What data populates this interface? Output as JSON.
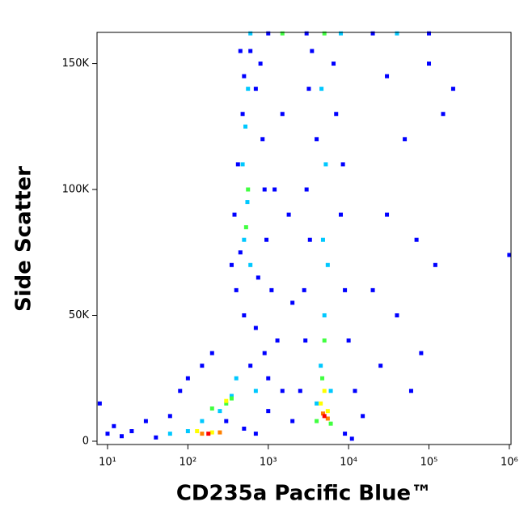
{
  "chart_data": {
    "type": "scatter",
    "x_label": "CD235a Pacific Blue™",
    "y_label": "Side Scatter",
    "xscale": "log",
    "xlim": [
      7.4,
      1050000
    ],
    "xticks": [
      {
        "value": 10,
        "label": "10¹"
      },
      {
        "value": 100,
        "label": "10²"
      },
      {
        "value": 1000,
        "label": "10³"
      },
      {
        "value": 10000,
        "label": "10⁴"
      },
      {
        "value": 100000,
        "label": "10⁵"
      },
      {
        "value": 1000000,
        "label": "10⁶"
      }
    ],
    "ylim": [
      -1300,
      162400
    ],
    "yticks": [
      {
        "value": 0,
        "label": "0"
      },
      {
        "value": 50000,
        "label": "50K"
      },
      {
        "value": 100000,
        "label": "100K"
      },
      {
        "value": 150000,
        "label": "150K"
      }
    ],
    "grid": false,
    "series": [
      {
        "color": "#0000ff",
        "x": [
          400,
          450,
          380,
          420,
          480,
          500,
          450,
          800,
          850,
          900,
          750,
          600,
          700,
          350,
          950,
          1100,
          1200,
          1500,
          1800,
          2000,
          1300,
          900,
          700,
          500,
          1000,
          600,
          2500,
          2800,
          3000,
          3200,
          3500,
          4000,
          7000,
          8000,
          9000,
          10000,
          12000,
          15000,
          6500,
          8500,
          3300,
          2900,
          20000,
          30000,
          50000,
          25000,
          40000,
          70000,
          100000,
          150000,
          200000,
          60000,
          80000,
          120000,
          30000,
          1000000,
          8,
          10,
          12,
          15,
          20,
          30,
          40,
          60,
          80,
          100,
          150,
          200,
          300,
          500,
          700,
          1000,
          1500,
          2000,
          9000,
          11000,
          1000,
          3000,
          20000,
          100000
        ],
        "y": [
          60000,
          75000,
          90000,
          110000,
          130000,
          145000,
          155000,
          150000,
          120000,
          100000,
          65000,
          155000,
          140000,
          70000,
          80000,
          60000,
          100000,
          130000,
          90000,
          55000,
          40000,
          35000,
          45000,
          50000,
          25000,
          30000,
          20000,
          60000,
          100000,
          140000,
          155000,
          120000,
          130000,
          90000,
          60000,
          40000,
          20000,
          10000,
          150000,
          110000,
          80000,
          40000,
          60000,
          90000,
          120000,
          30000,
          50000,
          80000,
          150000,
          130000,
          140000,
          20000,
          35000,
          70000,
          145000,
          74000,
          15000,
          3000,
          6000,
          2000,
          4000,
          8000,
          1500,
          10000,
          20000,
          25000,
          30000,
          35000,
          8000,
          5000,
          3000,
          12000,
          20000,
          8000,
          3000,
          1000,
          162000,
          162000,
          162000,
          162000
        ]
      },
      {
        "color": "#00c8ff",
        "x": [
          500,
          550,
          480,
          520,
          600,
          560,
          4500,
          5000,
          4800,
          5200,
          4600,
          5500,
          4000,
          6000,
          250,
          350,
          150,
          100,
          60,
          400,
          700,
          8000,
          600,
          40000
        ],
        "y": [
          80000,
          95000,
          110000,
          125000,
          70000,
          140000,
          30000,
          50000,
          80000,
          110000,
          140000,
          70000,
          15000,
          20000,
          12000,
          18000,
          8000,
          4000,
          3000,
          25000,
          20000,
          162000,
          162000,
          162000
        ]
      },
      {
        "color": "#40ff40",
        "x": [
          530,
          560,
          4700,
          5000,
          300,
          350,
          200,
          4000,
          6000,
          1500,
          5000
        ],
        "y": [
          85000,
          100000,
          25000,
          40000,
          15000,
          17000,
          13000,
          8000,
          7000,
          162000,
          162000
        ]
      },
      {
        "color": "#ffff00",
        "x": [
          300,
          4500,
          5500,
          130,
          200,
          5000
        ],
        "y": [
          16000,
          15000,
          12000,
          4000,
          3500,
          20000
        ]
      },
      {
        "color": "#ff8000",
        "x": [
          4800,
          5500,
          150,
          250
        ],
        "y": [
          11000,
          9000,
          3000,
          3500
        ]
      },
      {
        "color": "#ff0000",
        "x": [
          5000,
          180
        ],
        "y": [
          10000,
          3000
        ]
      }
    ]
  }
}
